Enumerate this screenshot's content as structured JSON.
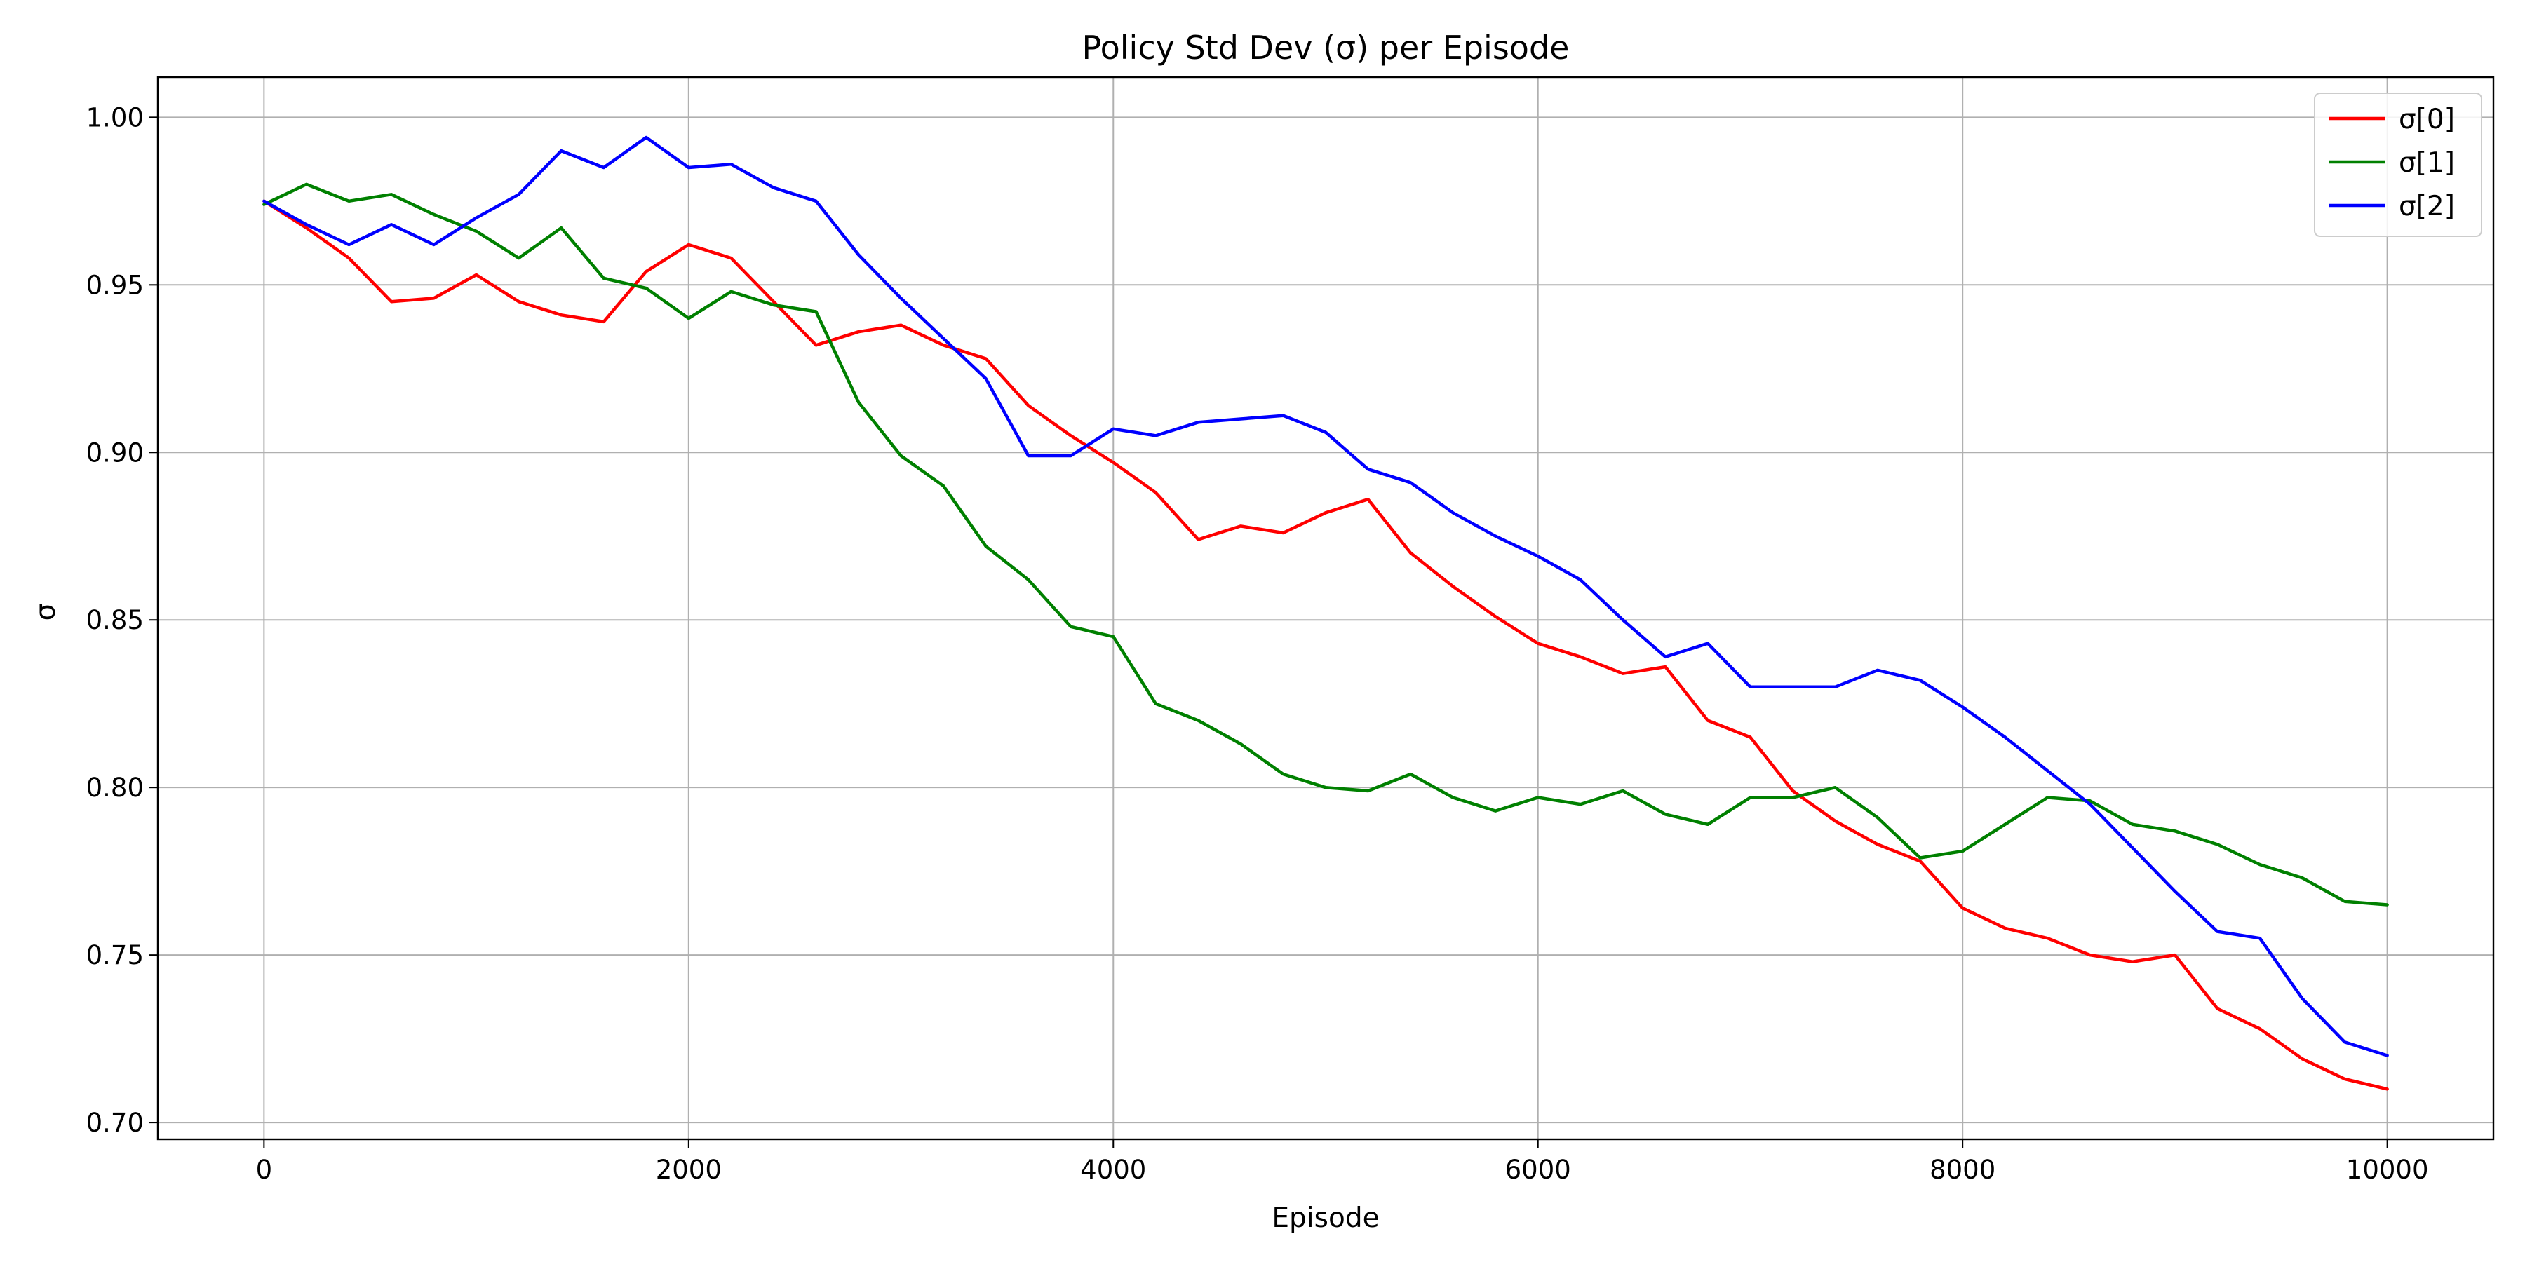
{
  "chart_data": {
    "type": "line",
    "title": "Policy Std Dev (σ) per Episode",
    "xlabel": "Episode",
    "ylabel": "σ",
    "xlim": [
      -500,
      10500
    ],
    "ylim": [
      0.695,
      1.012
    ],
    "xticks": [
      0,
      2000,
      4000,
      6000,
      8000,
      10000
    ],
    "xtick_labels": [
      "0",
      "2000",
      "4000",
      "6000",
      "8000",
      "10000"
    ],
    "yticks": [
      0.7,
      0.75,
      0.8,
      0.85,
      0.9,
      0.95,
      1.0
    ],
    "ytick_labels": [
      "0.70",
      "0.75",
      "0.80",
      "0.85",
      "0.90",
      "0.95",
      "1.00"
    ],
    "grid": true,
    "legend_position": "top-right",
    "x": [
      0,
      200,
      400,
      600,
      800,
      1000,
      1200,
      1400,
      1600,
      1800,
      2000,
      2200,
      2400,
      2600,
      2800,
      3000,
      3200,
      3400,
      3600,
      3800,
      4000,
      4200,
      4400,
      4600,
      4800,
      5000,
      5200,
      5400,
      5600,
      5800,
      6000,
      6200,
      6400,
      6600,
      6800,
      7000,
      7200,
      7400,
      7600,
      7800,
      8000,
      8200,
      8400,
      8600,
      8800,
      9000,
      9200,
      9400,
      9600,
      9800,
      10000
    ],
    "series": [
      {
        "name": "σ[0]",
        "color": "#ff0000",
        "values": [
          0.975,
          0.967,
          0.958,
          0.945,
          0.946,
          0.953,
          0.945,
          0.941,
          0.939,
          0.954,
          0.962,
          0.958,
          0.945,
          0.932,
          0.936,
          0.938,
          0.932,
          0.928,
          0.914,
          0.905,
          0.897,
          0.888,
          0.874,
          0.878,
          0.876,
          0.882,
          0.886,
          0.87,
          0.86,
          0.851,
          0.843,
          0.839,
          0.834,
          0.836,
          0.82,
          0.815,
          0.799,
          0.79,
          0.783,
          0.778,
          0.764,
          0.758,
          0.755,
          0.75,
          0.748,
          0.75,
          0.734,
          0.728,
          0.719,
          0.713,
          0.71
        ]
      },
      {
        "name": "σ[1]",
        "color": "#008000",
        "values": [
          0.974,
          0.98,
          0.975,
          0.977,
          0.971,
          0.966,
          0.958,
          0.967,
          0.952,
          0.949,
          0.94,
          0.948,
          0.944,
          0.942,
          0.915,
          0.899,
          0.89,
          0.872,
          0.862,
          0.848,
          0.845,
          0.825,
          0.82,
          0.813,
          0.804,
          0.8,
          0.799,
          0.804,
          0.797,
          0.793,
          0.797,
          0.795,
          0.799,
          0.792,
          0.789,
          0.797,
          0.797,
          0.8,
          0.791,
          0.779,
          0.781,
          0.789,
          0.797,
          0.796,
          0.789,
          0.787,
          0.783,
          0.777,
          0.773,
          0.766,
          0.765
        ]
      },
      {
        "name": "σ[2]",
        "color": "#0000ff",
        "values": [
          0.975,
          0.968,
          0.962,
          0.968,
          0.962,
          0.97,
          0.977,
          0.99,
          0.985,
          0.994,
          0.985,
          0.986,
          0.979,
          0.975,
          0.959,
          0.946,
          0.934,
          0.922,
          0.899,
          0.899,
          0.907,
          0.905,
          0.909,
          0.91,
          0.911,
          0.906,
          0.895,
          0.891,
          0.882,
          0.875,
          0.869,
          0.862,
          0.85,
          0.839,
          0.843,
          0.83,
          0.83,
          0.83,
          0.835,
          0.832,
          0.824,
          0.815,
          0.805,
          0.795,
          0.782,
          0.769,
          0.757,
          0.755,
          0.737,
          0.724,
          0.72
        ]
      }
    ]
  }
}
